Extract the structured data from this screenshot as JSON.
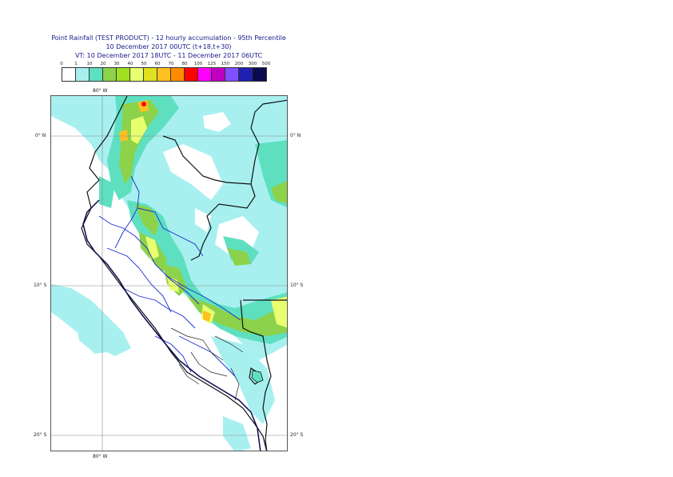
{
  "header": {
    "line1": "Point Rainfall (TEST PRODUCT) - 12 hourly accumulation - 95th Percentile",
    "line2": "10 December 2017 00UTC (t+18,t+30)",
    "line3": "VT: 10 December 2017 18UTC - 11 December 2017 06UTC"
  },
  "legend": {
    "ticks": [
      "0",
      "1",
      "10",
      "20",
      "30",
      "40",
      "50",
      "60",
      "70",
      "80",
      "100",
      "125",
      "150",
      "200",
      "300",
      "500"
    ],
    "colors": [
      "#ffffff",
      "#a8f0f0",
      "#5ee0c0",
      "#8cd24a",
      "#a0e020",
      "#e8ff70",
      "#e0e020",
      "#ffc020",
      "#ff8c00",
      "#ff0000",
      "#ff00ff",
      "#c000c0",
      "#8050ff",
      "#2020b0",
      "#0a0a50"
    ]
  },
  "map": {
    "lon_top": "80° W",
    "lon_bottom": "80° W",
    "lat_equator_left": "0° N",
    "lat_equator_right": "0° N",
    "lat_10s_left": "10° S",
    "lat_10s_right": "10° S",
    "lat_20s_left": "20° S",
    "lat_20s_right": "20° S"
  }
}
